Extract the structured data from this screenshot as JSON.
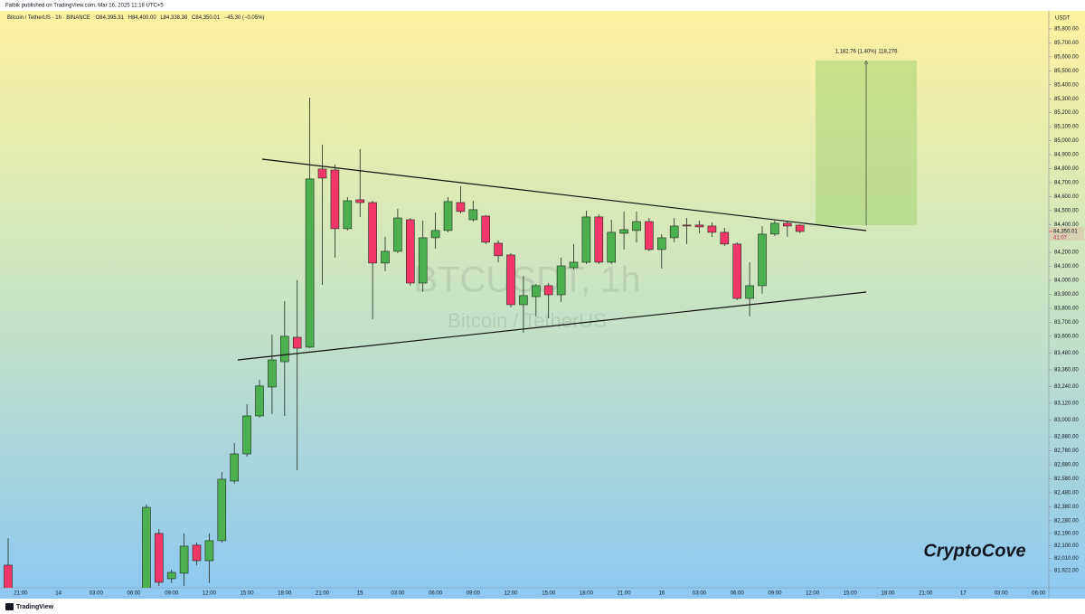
{
  "header": {
    "publisher": "Falbik published on TradingView.com, Mar 16, 2025 11:18 UTC+5"
  },
  "chart_data": {
    "type": "candlestick",
    "symbol": "Bitcoin / TetherUS · 1h · BINANCE",
    "legend_values": [
      "O84,395.31",
      "H84,400.00",
      "L84,338.30",
      "C84,350.01",
      "−45.30 (−0.05%)"
    ],
    "currency": "USDT",
    "watermark": "BTCUSDT, 1h",
    "watermark_subtitle": "Bitcoin / TetherUS",
    "categories": [
      null,
      "21:00",
      null,
      null,
      "14",
      null,
      null,
      "03:00",
      null,
      null,
      "06:00",
      null,
      null,
      "09:00",
      null,
      null,
      "12:00",
      null,
      null,
      "15:00",
      null,
      null,
      "18:00",
      null,
      null,
      "21:00",
      null,
      null,
      "15",
      null,
      null,
      "03:00",
      null,
      null,
      "06:00",
      null,
      null,
      "09:00",
      null,
      null,
      "12:00",
      null,
      null,
      "15:00",
      null,
      null,
      "18:00",
      null,
      null,
      "21:00",
      null,
      null,
      "16",
      null,
      null,
      "03:00",
      null,
      null,
      "06:00",
      null,
      null,
      "09:00",
      null,
      null,
      "12:00",
      null,
      null,
      "15:00",
      null,
      null,
      "18:00",
      null,
      null,
      "21:00",
      null,
      null,
      "17",
      null,
      null,
      "03:00",
      null,
      null,
      "06:00",
      null
    ],
    "open": [
      81962,
      null,
      null,
      null,
      null,
      null,
      null,
      null,
      null,
      null,
      null,
      81750,
      82189,
      81865,
      81904,
      82105,
      81994,
      82137,
      82564,
      82758,
      83030,
      83237,
      83418,
      83593,
      83522,
      84797,
      84790,
      84370,
      84577,
      84557,
      84124,
      84208,
      84434,
      83981,
      84305,
      84357,
      84557,
      84434,
      84460,
      84266,
      84182,
      83826,
      83884,
      83962,
      83897,
      84091,
      84130,
      84454,
      84130,
      84337,
      84357,
      84421,
      84221,
      84305,
      84396,
      84396,
      84389,
      84344,
      84260,
      83871,
      83962,
      84331,
      84409,
      84395.31,
      null,
      null,
      null,
      null,
      null,
      null,
      null,
      null,
      null,
      null,
      null,
      null,
      null,
      null,
      null,
      null,
      null,
      null,
      null,
      null
    ],
    "high": [
      82156,
      null,
      null,
      null,
      null,
      null,
      null,
      null,
      null,
      null,
      null,
      82396,
      82221,
      81930,
      82189,
      82124,
      82189,
      82629,
      82836,
      83114,
      83289,
      83612,
      83852,
      84001,
      85308,
      84972,
      84829,
      84596,
      84939,
      84570,
      84311,
      84512,
      84447,
      84428,
      84486,
      84596,
      84674,
      84570,
      84467,
      84286,
      84195,
      84033,
      83975,
      83981,
      84163,
      84260,
      84499,
      84473,
      84434,
      84493,
      84493,
      84447,
      84331,
      84447,
      84447,
      84428,
      84415,
      84376,
      84273,
      84130,
      84389,
      84428,
      84421,
      84400,
      null,
      null,
      null,
      null,
      null,
      null,
      null,
      null,
      null,
      null,
      null,
      null,
      null,
      null,
      null,
      null,
      null,
      null,
      null,
      null
    ],
    "low": [
      81700,
      null,
      null,
      null,
      null,
      null,
      null,
      null,
      null,
      null,
      null,
      81700,
      81813,
      81833,
      81813,
      81962,
      81833,
      82124,
      82545,
      82739,
      83017,
      83043,
      83030,
      82642,
      83515,
      83968,
      84163,
      84357,
      84454,
      83723,
      84066,
      84195,
      83962,
      83917,
      84227,
      84344,
      84480,
      84421,
      84260,
      84130,
      83807,
      83625,
      83742,
      83729,
      83845,
      84078,
      84117,
      84117,
      84117,
      84221,
      84273,
      84208,
      84085,
      84273,
      84260,
      84337,
      84311,
      84247,
      83858,
      83742,
      83904,
      84318,
      84311,
      84338.3,
      null,
      null,
      null,
      null,
      null,
      null,
      null,
      null,
      null,
      null,
      null,
      null,
      null,
      null,
      null,
      null,
      null,
      null,
      null,
      null
    ],
    "close": [
      81750,
      null,
      null,
      null,
      null,
      null,
      null,
      null,
      null,
      null,
      null,
      82376,
      81839,
      81910,
      82098,
      81994,
      82137,
      82577,
      82758,
      83030,
      83244,
      83431,
      83600,
      83515,
      84726,
      84732,
      84370,
      84570,
      84557,
      84124,
      84208,
      84447,
      83981,
      84305,
      84357,
      84564,
      84493,
      84506,
      84273,
      84176,
      83826,
      83891,
      83962,
      83897,
      84104,
      84130,
      84454,
      84130,
      84344,
      84363,
      84421,
      84221,
      84305,
      84389,
      84389,
      84383,
      84344,
      84260,
      83871,
      83962,
      84331,
      84409,
      84389,
      84350.01,
      null,
      null,
      null,
      null,
      null,
      null,
      null,
      null,
      null,
      null,
      null,
      null,
      null,
      null,
      null,
      null,
      null,
      null,
      null,
      null
    ],
    "up_color": "#4caf50",
    "down_color": "#f23668",
    "ylim": [
      81800,
      85929
    ],
    "yticks": [
      {
        "value": 85800,
        "label": "85,800.00"
      },
      {
        "value": 85700,
        "label": "85,700.00"
      },
      {
        "value": 85600,
        "label": "85,600.00"
      },
      {
        "value": 85500,
        "label": "85,500.00"
      },
      {
        "value": 85400,
        "label": "85,400.00"
      },
      {
        "value": 85300,
        "label": "85,300.00"
      },
      {
        "value": 85200,
        "label": "85,200.00"
      },
      {
        "value": 85100,
        "label": "85,100.00"
      },
      {
        "value": 85000,
        "label": "85,000.00"
      },
      {
        "value": 84900,
        "label": "84,900.00"
      },
      {
        "value": 84800,
        "label": "84,800.00"
      },
      {
        "value": 84700,
        "label": "84,700.00"
      },
      {
        "value": 84600,
        "label": "84,600.00"
      },
      {
        "value": 84500,
        "label": "84,500.00"
      },
      {
        "value": 84400,
        "label": "84,400.00"
      },
      {
        "value": 84200,
        "label": "84,200.00"
      },
      {
        "value": 84100,
        "label": "84,100.00"
      },
      {
        "value": 84000,
        "label": "84,000.00"
      },
      {
        "value": 83900,
        "label": "83,900.00"
      },
      {
        "value": 83800,
        "label": "83,800.00"
      },
      {
        "value": 83700,
        "label": "83,700.00"
      },
      {
        "value": 83600,
        "label": "83,600.00"
      },
      {
        "value": 83480,
        "label": "83,480.00"
      },
      {
        "value": 83360,
        "label": "83,360.00"
      },
      {
        "value": 83240,
        "label": "83,240.00"
      },
      {
        "value": 83120,
        "label": "83,120.00"
      },
      {
        "value": 83000,
        "label": "83,000.00"
      },
      {
        "value": 82880,
        "label": "82,880.00"
      },
      {
        "value": 82780,
        "label": "82,780.00"
      },
      {
        "value": 82680,
        "label": "82,680.00"
      },
      {
        "value": 82580,
        "label": "82,580.00"
      },
      {
        "value": 82480,
        "label": "82,480.00"
      },
      {
        "value": 82380,
        "label": "82,380.00"
      },
      {
        "value": 82280,
        "label": "82,280.00"
      },
      {
        "value": 82190,
        "label": "82,190.00"
      },
      {
        "value": 82100,
        "label": "82,100.00"
      },
      {
        "value": 82010,
        "label": "82,010.00"
      },
      {
        "value": 81922,
        "label": "81,922.00"
      }
    ],
    "last_price_label": "84,350.01",
    "countdown": "41:07",
    "measure_label": "1,182.76 (1.40%) 118,276"
  },
  "watermark_logo": "CryptoCove",
  "footer": {
    "brand": "TradingView"
  }
}
